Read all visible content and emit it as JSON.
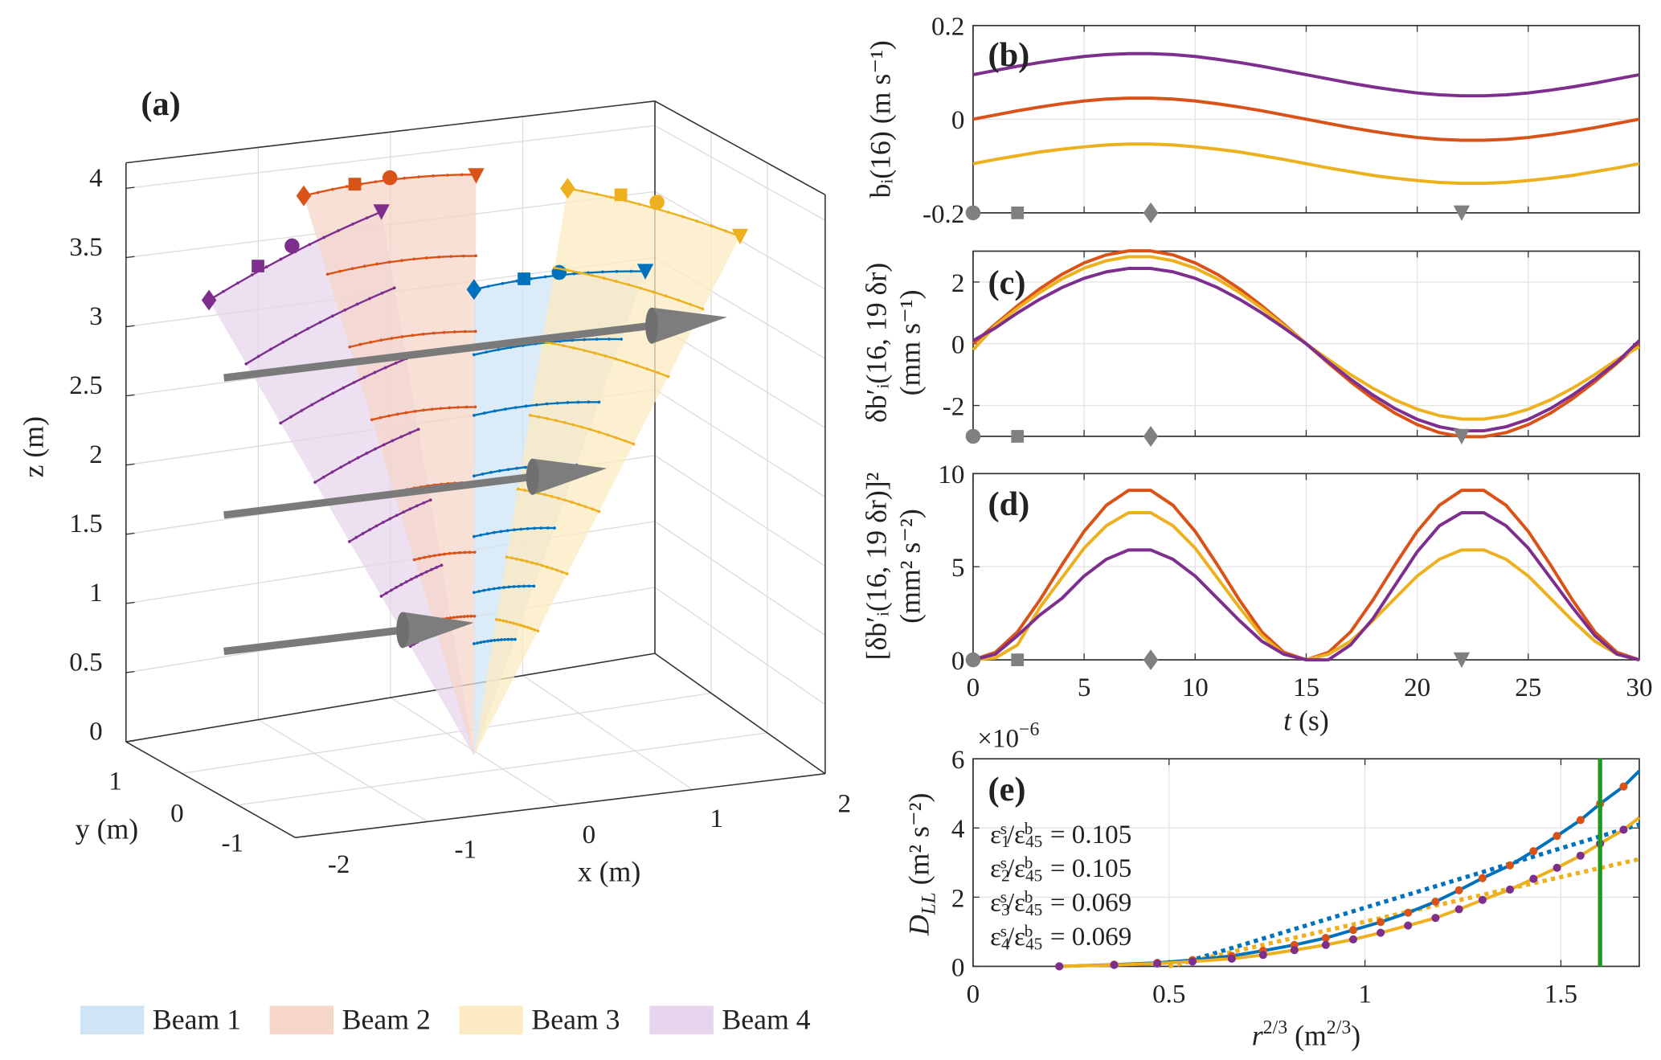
{
  "colors": {
    "beam1": "#0072BD",
    "beam2": "#D95319",
    "beam3": "#EDB120",
    "beam4": "#7E2F8E",
    "marker": "#808080",
    "vline": "#1f9a1f"
  },
  "chart_data": [
    {
      "panel": "(a)",
      "type": "3d",
      "zlabel": "z (m)",
      "ylabel": "y (m)",
      "xlabel": "x (m)",
      "zticks": [
        "0",
        "0.5",
        "1",
        "1.5",
        "2",
        "2.5",
        "3",
        "3.5",
        "4"
      ],
      "yticks": [
        "1",
        "0",
        "-1"
      ],
      "xticks": [
        "-2",
        "-1",
        "0",
        "1",
        "2"
      ],
      "marker_symbols": [
        "diamond",
        "square",
        "circle",
        "triangle-down"
      ],
      "legend": [
        {
          "name": "Beam 1",
          "color": "#0072BD",
          "fill": "#cfe4f4"
        },
        {
          "name": "Beam 2",
          "color": "#D95319",
          "fill": "#f6d6c8"
        },
        {
          "name": "Beam 3",
          "color": "#EDB120",
          "fill": "#fcebc2"
        },
        {
          "name": "Beam 4",
          "color": "#7E2F8E",
          "fill": "#e6d5ec"
        }
      ],
      "legend_placement": "bottom"
    },
    {
      "panel": "(b)",
      "type": "line",
      "ylabel": "bᵢ(16)  (m s⁻¹)",
      "xlim": [
        0,
        30
      ],
      "ylim": [
        -0.2,
        0.2
      ],
      "yticks": [
        "-0.2",
        "0",
        "0.2"
      ],
      "grid": true,
      "x": [
        0,
        1,
        2,
        3,
        4,
        5,
        6,
        7,
        8,
        9,
        10,
        11,
        12,
        13,
        14,
        15,
        16,
        17,
        18,
        19,
        20,
        21,
        22,
        23,
        24,
        25,
        26,
        27,
        28,
        29,
        30
      ],
      "series": [
        {
          "color": "#7E2F8E",
          "values": [
            0.095,
            0.104,
            0.113,
            0.121,
            0.128,
            0.134,
            0.138,
            0.14,
            0.14,
            0.138,
            0.134,
            0.128,
            0.121,
            0.113,
            0.104,
            0.095,
            0.086,
            0.077,
            0.069,
            0.062,
            0.056,
            0.052,
            0.05,
            0.05,
            0.052,
            0.056,
            0.062,
            0.069,
            0.077,
            0.086,
            0.095
          ]
        },
        {
          "color": "#D95319",
          "values": [
            0,
            0.009,
            0.018,
            0.026,
            0.033,
            0.039,
            0.043,
            0.045,
            0.045,
            0.043,
            0.039,
            0.033,
            0.026,
            0.018,
            0.009,
            0,
            -0.009,
            -0.018,
            -0.026,
            -0.033,
            -0.039,
            -0.043,
            -0.045,
            -0.045,
            -0.043,
            -0.039,
            -0.033,
            -0.026,
            -0.018,
            -0.009,
            0
          ]
        },
        {
          "color": "#EDB120",
          "values": [
            -0.095,
            -0.086,
            -0.078,
            -0.07,
            -0.064,
            -0.059,
            -0.055,
            -0.053,
            -0.053,
            -0.055,
            -0.059,
            -0.064,
            -0.07,
            -0.078,
            -0.086,
            -0.095,
            -0.104,
            -0.112,
            -0.12,
            -0.126,
            -0.131,
            -0.135,
            -0.137,
            -0.137,
            -0.135,
            -0.131,
            -0.126,
            -0.12,
            -0.112,
            -0.104,
            -0.095
          ]
        }
      ],
      "markers": [
        {
          "t": 0,
          "symbol": "circle"
        },
        {
          "t": 2,
          "symbol": "square"
        },
        {
          "t": 8,
          "symbol": "diamond"
        },
        {
          "t": 22,
          "symbol": "triangle-down"
        }
      ]
    },
    {
      "panel": "(c)",
      "type": "line",
      "ylabel": [
        "δb′ᵢ(16, 19 δr)",
        "(mm s⁻¹)"
      ],
      "xlim": [
        0,
        30
      ],
      "ylim": [
        -3,
        3
      ],
      "yticks": [
        "-2",
        "0",
        "2"
      ],
      "grid": true,
      "x": [
        0,
        1,
        2,
        3,
        4,
        5,
        6,
        7,
        8,
        9,
        10,
        11,
        12,
        13,
        14,
        15,
        16,
        17,
        18,
        19,
        20,
        21,
        22,
        23,
        24,
        25,
        26,
        27,
        28,
        29,
        30
      ],
      "series": [
        {
          "color": "#D95319",
          "values": [
            0,
            0.63,
            1.23,
            1.78,
            2.25,
            2.62,
            2.88,
            3.01,
            3.01,
            2.88,
            2.62,
            2.25,
            1.78,
            1.23,
            0.63,
            0,
            -0.63,
            -1.23,
            -1.78,
            -2.25,
            -2.62,
            -2.88,
            -3.01,
            -3.01,
            -2.88,
            -2.62,
            -2.25,
            -1.78,
            -1.23,
            -0.63,
            0
          ]
        },
        {
          "color": "#EDB120",
          "values": [
            -0.2,
            0.59,
            1.15,
            1.66,
            2.1,
            2.45,
            2.69,
            2.82,
            2.82,
            2.69,
            2.45,
            2.1,
            1.66,
            1.15,
            0.59,
            0,
            -0.51,
            -1.0,
            -1.44,
            -1.82,
            -2.12,
            -2.33,
            -2.44,
            -2.44,
            -2.33,
            -2.12,
            -1.82,
            -1.44,
            -1.0,
            -0.51,
            -0.1
          ]
        },
        {
          "color": "#7E2F8E",
          "values": [
            0.1,
            0.51,
            1.0,
            1.44,
            1.82,
            2.12,
            2.33,
            2.44,
            2.44,
            2.33,
            2.12,
            1.82,
            1.44,
            1.0,
            0.51,
            0,
            -0.59,
            -1.15,
            -1.66,
            -2.1,
            -2.45,
            -2.69,
            -2.82,
            -2.82,
            -2.69,
            -2.45,
            -2.1,
            -1.66,
            -1.15,
            -0.59,
            0.1
          ]
        }
      ],
      "markers": [
        {
          "t": 0,
          "symbol": "circle"
        },
        {
          "t": 2,
          "symbol": "square"
        },
        {
          "t": 8,
          "symbol": "diamond"
        },
        {
          "t": 22,
          "symbol": "triangle-down"
        }
      ]
    },
    {
      "panel": "(d)",
      "type": "line",
      "ylabel": [
        "[δb′ᵢ(16, 19 δr)]²",
        "(mm² s⁻²)"
      ],
      "xlabel": "t",
      "xlabel_unit": " (s)",
      "xlim": [
        0,
        30
      ],
      "ylim": [
        0,
        10
      ],
      "xticks": [
        "0",
        "5",
        "10",
        "15",
        "20",
        "25",
        "30"
      ],
      "yticks": [
        "0",
        "5",
        "10"
      ],
      "grid": true,
      "x": [
        0,
        1,
        2,
        3,
        4,
        5,
        6,
        7,
        8,
        9,
        10,
        11,
        12,
        13,
        14,
        15,
        16,
        17,
        18,
        19,
        20,
        21,
        22,
        23,
        24,
        25,
        26,
        27,
        28,
        29,
        30
      ],
      "series": [
        {
          "color": "#D95319",
          "values": [
            0,
            0.4,
            1.5,
            3.2,
            5.1,
            6.9,
            8.3,
            9.1,
            9.1,
            8.3,
            6.9,
            5.1,
            3.2,
            1.5,
            0.4,
            0,
            0.4,
            1.5,
            3.2,
            5.1,
            6.9,
            8.3,
            9.1,
            9.1,
            8.3,
            6.9,
            5.1,
            3.2,
            1.5,
            0.4,
            0
          ]
        },
        {
          "color": "#EDB120",
          "values": [
            0,
            0.1,
            0.8,
            2.8,
            4.4,
            6.0,
            7.2,
            7.9,
            7.9,
            7.2,
            6.0,
            4.4,
            2.8,
            1.3,
            0.3,
            0,
            0.3,
            1.0,
            2.1,
            3.3,
            4.5,
            5.4,
            5.9,
            5.9,
            5.4,
            4.5,
            3.3,
            2.1,
            1.0,
            0.3,
            0
          ]
        },
        {
          "color": "#7E2F8E",
          "values": [
            0,
            0.3,
            1.3,
            2.4,
            3.3,
            4.5,
            5.4,
            5.9,
            5.9,
            5.4,
            4.5,
            3.3,
            2.1,
            1.0,
            0.3,
            0,
            0,
            0.8,
            2.2,
            4.0,
            5.8,
            7.2,
            7.9,
            7.9,
            7.2,
            6.0,
            4.4,
            2.8,
            1.3,
            0.3,
            0
          ]
        }
      ],
      "markers": [
        {
          "t": 0,
          "symbol": "circle"
        },
        {
          "t": 2,
          "symbol": "square"
        },
        {
          "t": 8,
          "symbol": "diamond"
        },
        {
          "t": 22,
          "symbol": "triangle-down"
        }
      ]
    },
    {
      "panel": "(e)",
      "type": "line",
      "ylabel_main": "D",
      "ylabel_sub": "LL",
      "ylabel_unit": " (m² s⁻²)",
      "xlabel_main": "r",
      "xlabel_sup": "2/3",
      "xlabel_unit_open": " (m",
      "xlabel_unit_sup": "2/3",
      "xlabel_unit_close": ")",
      "exponent": "×10",
      "exponent_power": "−6",
      "xlim": [
        0,
        1.7
      ],
      "ylim": [
        0,
        6
      ],
      "xticks": [
        {
          "v": 0,
          "label": "0"
        },
        {
          "v": 0.5,
          "label": "0.5"
        },
        {
          "v": 1,
          "label": "1"
        },
        {
          "v": 1.5,
          "label": "1.5"
        }
      ],
      "yticks": [
        {
          "v": 0,
          "label": "0"
        },
        {
          "v": 2,
          "label": "2"
        },
        {
          "v": 4,
          "label": "4"
        },
        {
          "v": 6,
          "label": "6"
        }
      ],
      "grid": true,
      "x": [
        0.22,
        0.36,
        0.47,
        0.56,
        0.66,
        0.74,
        0.82,
        0.9,
        0.97,
        1.04,
        1.11,
        1.18,
        1.24,
        1.3,
        1.37,
        1.43,
        1.49,
        1.55,
        1.6,
        1.66,
        1.7
      ],
      "series": [
        {
          "color": "#0072BD",
          "style": "solid",
          "values": [
            0.0,
            0.05,
            0.1,
            0.18,
            0.3,
            0.45,
            0.62,
            0.82,
            1.05,
            1.28,
            1.55,
            1.87,
            2.2,
            2.55,
            2.92,
            3.33,
            3.77,
            4.23,
            4.7,
            5.2,
            5.65
          ],
          "dots": "#D95319"
        },
        {
          "color": "#EDB120",
          "style": "solid",
          "values": [
            0.0,
            0.04,
            0.08,
            0.14,
            0.22,
            0.33,
            0.47,
            0.62,
            0.78,
            0.97,
            1.18,
            1.4,
            1.65,
            1.92,
            2.22,
            2.53,
            2.85,
            3.2,
            3.55,
            3.95,
            4.3
          ],
          "dots": "#7E2F8E"
        }
      ],
      "fits": [
        {
          "color": "#0072BD",
          "style": "dotted",
          "x": [
            0.55,
            1.7
          ],
          "y": [
            0.15,
            4.1
          ]
        },
        {
          "color": "#EDB120",
          "style": "dotted",
          "x": [
            0.5,
            1.7
          ],
          "y": [
            0.0,
            3.1
          ]
        }
      ],
      "vline": {
        "x": 1.6,
        "color": "#1f9a1f"
      },
      "annotations": [
        {
          "sub": "1",
          "value": " = 0.105"
        },
        {
          "sub": "2",
          "value": " = 0.105"
        },
        {
          "sub": "3",
          "value": " = 0.069"
        },
        {
          "sub": "4",
          "value": " = 0.069"
        }
      ],
      "annotation_parts": {
        "eps": "ε",
        "sup_num": "s",
        "slash": "/ε",
        "sub_den": "45",
        "sup_den": "b"
      }
    }
  ]
}
